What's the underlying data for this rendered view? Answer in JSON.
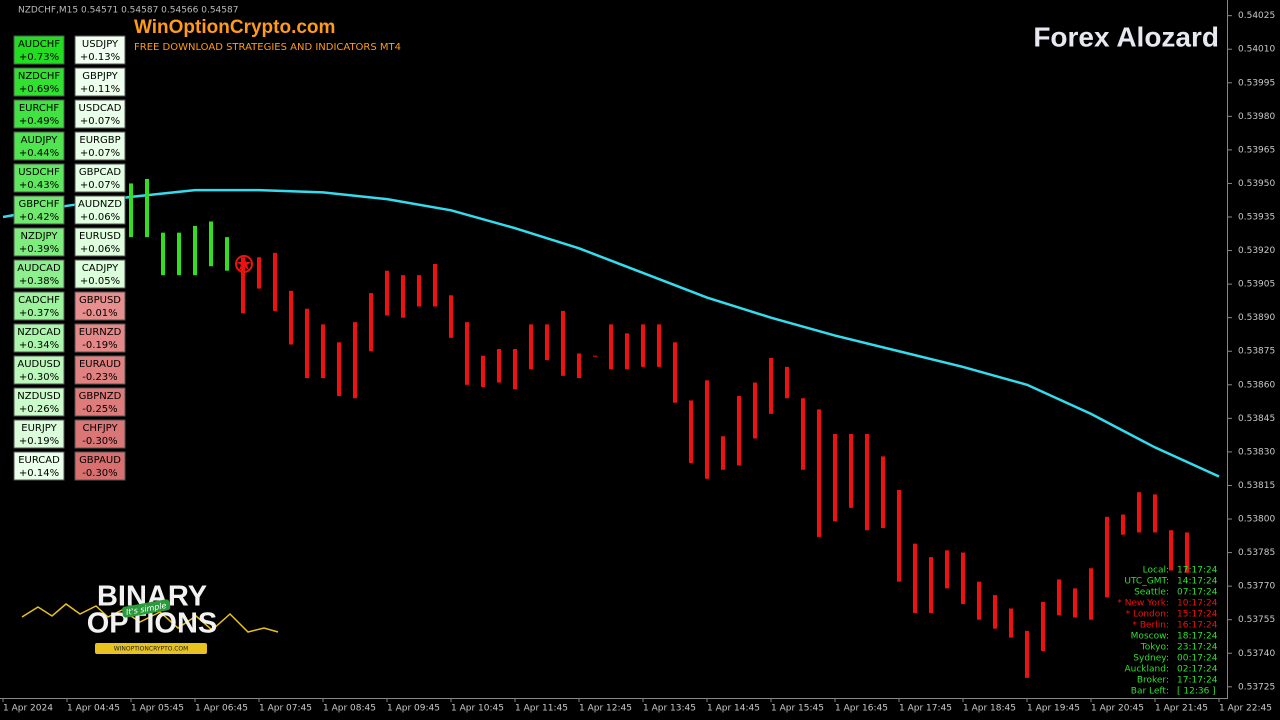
{
  "header": "NZDCHF,M15  0.54571 0.54587 0.54566 0.54587",
  "brand": {
    "site": "WinOptionCrypto.com",
    "tagline": "FREE DOWNLOAD STRATEGIES AND INDICATORS MT4",
    "name": "Forex Alozard"
  },
  "logo": {
    "line1": "BINARY",
    "line2": "OPTIONS",
    "badge": "It's simple",
    "url": "WINOPTIONCRYPTO.COM"
  },
  "chart_data": {
    "type": "range-bars",
    "ylim": [
      0.5372,
      0.54032
    ],
    "yticks": [
      0.54025,
      {
        "value": 0.5401,
        "label": "0.54010"
      },
      0.53995,
      {
        "value": 0.5398,
        "label": "0.53980"
      },
      0.53965,
      {
        "value": 0.5395,
        "label": "0.53950"
      },
      0.53935,
      {
        "value": 0.5392,
        "label": "0.53920"
      },
      0.53905,
      {
        "value": 0.5389,
        "label": "0.53890"
      },
      0.53875,
      {
        "value": 0.5386,
        "label": "0.53860"
      },
      0.53845,
      {
        "value": 0.5383,
        "label": "0.53830"
      },
      0.53815,
      {
        "value": 0.538,
        "label": "0.53800"
      },
      0.53785,
      {
        "value": 0.5377,
        "label": "0.53770"
      },
      0.53755,
      {
        "value": 0.5374,
        "label": "0.53740"
      },
      0.53725
    ],
    "categories": [
      "1 Apr 2024",
      "1 Apr 04:45",
      "1 Apr 05:45",
      "1 Apr 06:45",
      "1 Apr 07:45",
      "1 Apr 08:45",
      "1 Apr 09:45",
      "1 Apr 10:45",
      "1 Apr 11:45",
      "1 Apr 12:45",
      "1 Apr 13:45",
      "1 Apr 14:45",
      "1 Apr 15:45",
      "1 Apr 16:45",
      "1 Apr 17:45",
      "1 Apr 18:45",
      "1 Apr 19:45",
      "1 Apr 20:45",
      "1 Apr 21:45",
      "1 Apr 22:45"
    ],
    "series": [
      {
        "color": "#33dd22",
        "low": [
          0.53926,
          0.53926,
          0.53909,
          0.53909,
          0.53909,
          0.53913,
          0.53911
        ],
        "high": [
          0.5395,
          0.53952,
          0.53928,
          0.53928,
          0.53931,
          0.53933,
          0.53926
        ]
      },
      {
        "color": "#ee1111",
        "low": [
          0.53892,
          0.53903,
          0.53893,
          0.53878,
          0.53863,
          0.53863,
          0.53855,
          0.53854,
          0.53875,
          0.53891,
          0.5389,
          0.53895,
          0.53895,
          0.53881,
          0.5386,
          0.53859,
          0.53861,
          0.53858,
          0.53867,
          0.53871,
          0.53864,
          0.53863,
          0.53873,
          0.53867,
          0.53867,
          0.53868,
          0.53868,
          0.53852,
          0.53825,
          0.53818,
          0.53822,
          0.53824,
          0.53836,
          0.53847,
          0.53854,
          0.53822,
          0.53792,
          0.53799,
          0.53805,
          0.53795,
          0.53796,
          0.53772,
          0.53758,
          0.53758,
          0.53769,
          0.53762,
          0.53755,
          0.53751,
          0.53747,
          0.53729,
          0.53741,
          0.53757,
          0.53756,
          0.53755,
          0.53765,
          0.53793,
          0.53794,
          0.53794,
          0.53777,
          0.53776
        ],
        "high": [
          0.53917,
          0.53917,
          0.53919,
          0.53902,
          0.53894,
          0.53887,
          0.53879,
          0.53888,
          0.53901,
          0.53911,
          0.53909,
          0.53909,
          0.53914,
          0.539,
          0.53888,
          0.53873,
          0.53876,
          0.53876,
          0.53887,
          0.53887,
          0.53893,
          0.53874,
          0.53873,
          0.53887,
          0.53883,
          0.53887,
          0.53887,
          0.53879,
          0.53853,
          0.53862,
          0.53837,
          0.53855,
          0.53861,
          0.53872,
          0.53868,
          0.53854,
          0.53849,
          0.53838,
          0.53838,
          0.53838,
          0.53828,
          0.53813,
          0.53789,
          0.53783,
          0.53786,
          0.53785,
          0.53772,
          0.53766,
          0.5376,
          0.5375,
          0.53763,
          0.53773,
          0.53769,
          0.53778,
          0.53801,
          0.53802,
          0.53812,
          0.53811,
          0.53795,
          0.53794
        ]
      }
    ],
    "ma": {
      "color": "#33ddee",
      "values": [
        0.53935,
        0.5394,
        0.53944,
        0.53947,
        0.53947,
        0.53946,
        0.53943,
        0.53938,
        0.5393,
        0.53921,
        0.5391,
        0.53899,
        0.5389,
        0.53882,
        0.53875,
        0.53868,
        0.5386,
        0.53847,
        0.53832,
        0.53819
      ]
    }
  },
  "strength": {
    "left": [
      [
        "AUDCHF",
        "+0.73%"
      ],
      [
        "NZDCHF",
        "+0.69%"
      ],
      [
        "EURCHF",
        "+0.49%"
      ],
      [
        "AUDJPY",
        "+0.44%"
      ],
      [
        "USDCHF",
        "+0.43%"
      ],
      [
        "GBPCHF",
        "+0.42%"
      ],
      [
        "NZDJPY",
        "+0.39%"
      ],
      [
        "AUDCAD",
        "+0.38%"
      ],
      [
        "CADCHF",
        "+0.37%"
      ],
      [
        "NZDCAD",
        "+0.34%"
      ],
      [
        "AUDUSD",
        "+0.30%"
      ],
      [
        "NZDUSD",
        "+0.26%"
      ],
      [
        "EURJPY",
        "+0.19%"
      ],
      [
        "EURCAD",
        "+0.14%"
      ]
    ],
    "right": [
      [
        "USDJPY",
        "+0.13%"
      ],
      [
        "GBPJPY",
        "+0.11%"
      ],
      [
        "USDCAD",
        "+0.07%"
      ],
      [
        "EURGBP",
        "+0.07%"
      ],
      [
        "GBPCAD",
        "+0.07%"
      ],
      [
        "AUDNZD",
        "+0.06%"
      ],
      [
        "EURUSD",
        "+0.06%"
      ],
      [
        "CADJPY",
        "+0.05%"
      ],
      [
        "GBPUSD",
        "-0.01%"
      ],
      [
        "EURNZD",
        "-0.19%"
      ],
      [
        "EURAUD",
        "-0.23%"
      ],
      [
        "GBPNZD",
        "-0.25%"
      ],
      [
        "CHFJPY",
        "-0.30%"
      ],
      [
        "GBPAUD",
        "-0.30%"
      ]
    ]
  },
  "clocks": [
    [
      "Local:",
      "17:17:24"
    ],
    [
      "UTC_GMT:",
      "14:17:24"
    ],
    [
      "Seattle:",
      "07:17:24"
    ],
    [
      "* New York:",
      "10:17:24"
    ],
    [
      "* London:",
      "15:17:24"
    ],
    [
      "* Berlin:",
      "16:17:24"
    ],
    [
      "Moscow:",
      "18:17:24"
    ],
    [
      "Tokyo:",
      "23:17:24"
    ],
    [
      "Sydney:",
      "00:17:24"
    ],
    [
      "Auckland:",
      "02:17:24"
    ],
    [
      "Broker:",
      "17:17:24"
    ],
    [
      "Bar Left:",
      "[ 12:36 ]"
    ]
  ]
}
